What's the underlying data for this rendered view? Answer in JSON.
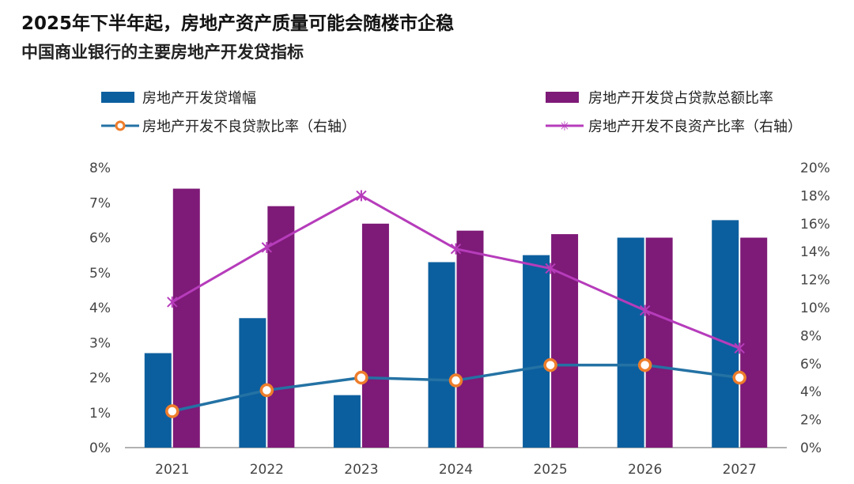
{
  "header": {
    "title": "2025年下半年起，房地产资产质量可能会随楼市企稳",
    "subtitle": "中国商业银行的主要房地产开发贷指标"
  },
  "colors": {
    "blue": "#0c5f9e",
    "purple": "#7e1a78",
    "teal_line": "#2472a4",
    "magenta_line": "#b63cbb",
    "marker_fill": "#ffffff",
    "marker_ring": "#ee7d2b",
    "axis": "#999999"
  },
  "chart_data": {
    "type": "bar",
    "title": "中国商业银行的主要房地产开发贷指标",
    "categories": [
      "2021",
      "2022",
      "2023",
      "2024",
      "2025",
      "2026",
      "2027"
    ],
    "left_axis": {
      "min": 0,
      "max": 8,
      "ticks": [
        "0%",
        "1%",
        "2%",
        "3%",
        "4%",
        "5%",
        "6%",
        "7%",
        "8%"
      ]
    },
    "right_axis": {
      "min": 0,
      "max": 20,
      "ticks": [
        "0%",
        "2%",
        "4%",
        "6%",
        "8%",
        "10%",
        "12%",
        "14%",
        "16%",
        "18%",
        "20%"
      ]
    },
    "series": [
      {
        "name": "房地产开发贷增幅",
        "kind": "bar",
        "axis": "left",
        "color": "#0c5f9e",
        "values": [
          2.7,
          3.7,
          1.5,
          5.3,
          5.5,
          6.0,
          6.5
        ]
      },
      {
        "name": "房地产开发贷占贷款总额比率",
        "kind": "bar",
        "axis": "left",
        "color": "#7e1a78",
        "values": [
          7.4,
          6.9,
          6.4,
          6.2,
          6.1,
          6.0,
          6.0
        ]
      },
      {
        "name": "房地产开发不良贷款比率（右轴）",
        "kind": "line-marker",
        "axis": "right",
        "color": "#2472a4",
        "values": [
          2.6,
          4.1,
          5.0,
          4.8,
          5.9,
          5.9,
          5.0
        ]
      },
      {
        "name": "房地产开发不良资产比率（右轴）",
        "kind": "line-cross",
        "axis": "right",
        "color": "#b63cbb",
        "values": [
          10.4,
          14.3,
          18.0,
          14.2,
          12.8,
          9.8,
          7.1
        ]
      }
    ],
    "legend": [
      "房地产开发贷增幅",
      "房地产开发贷占贷款总额比率",
      "房地产开发不良贷款比率（右轴）",
      "房地产开发不良资产比率（右轴）"
    ]
  }
}
